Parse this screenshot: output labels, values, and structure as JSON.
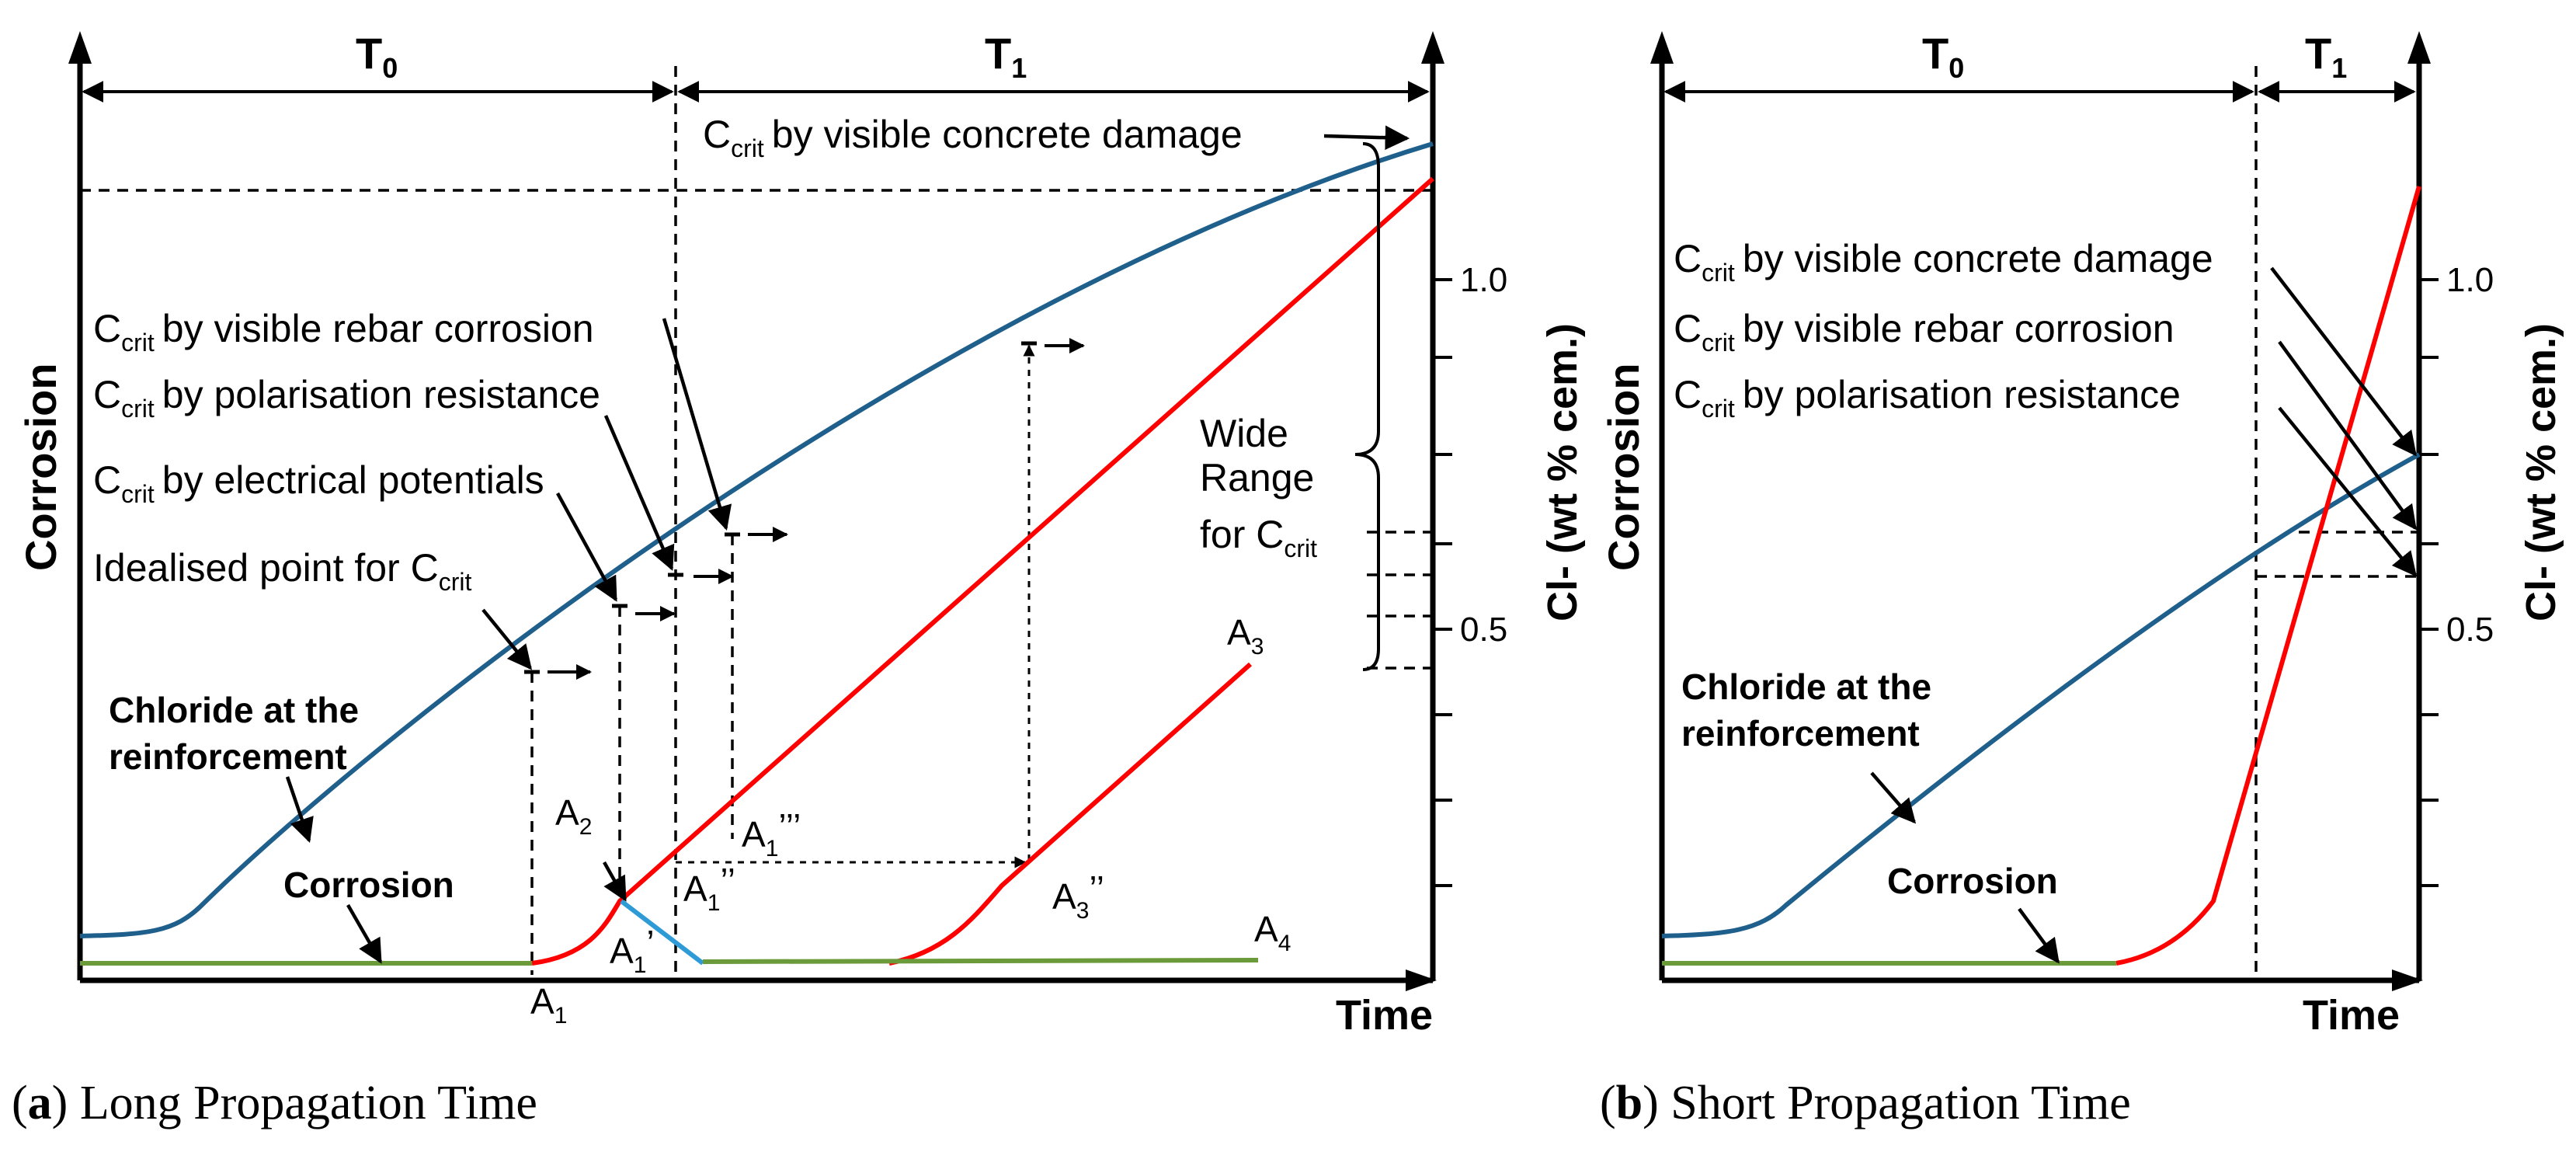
{
  "colors": {
    "chloride": "#1f5f8b",
    "corrosion_red": "#ff0000",
    "corrosion_green": "#6a9a3a",
    "drop_blue": "#2e9bd6",
    "axis": "#000000"
  },
  "panel_a": {
    "caption_letter": "a",
    "caption_text": "Long Propagation Time",
    "y_axis_left": "Corrosion",
    "y_axis_right": "Cl- (wt % cem.)",
    "x_axis": "Time",
    "t0": {
      "main": "T",
      "sub": "0"
    },
    "t1": {
      "main": "T",
      "sub": "1"
    },
    "tick_1": "1.0",
    "tick_05": "0.5",
    "ccrit_word": "C",
    "ccrit_sub": "crit",
    "ann_concrete": "by visible concrete damage",
    "ann_rebar": "by visible rebar corrosion",
    "ann_polar": "by polarisation resistance",
    "ann_potential": "by electrical  potentials",
    "ann_idealised": "Idealised point for C",
    "wide_line1": "Wide",
    "wide_line2": "Range",
    "wide_line3": "for C",
    "chloride_line1": "Chloride at the",
    "chloride_line2": "reinforcement",
    "corrosion_label": "Corrosion",
    "a1": {
      "main": "A",
      "sub": "1"
    },
    "a1p": {
      "main": "A",
      "sub": "1",
      "mark": "’"
    },
    "a1pp": {
      "main": "A",
      "sub": "1",
      "mark": "’’"
    },
    "a1ppp": {
      "main": "A",
      "sub": "1",
      "mark": "’’’"
    },
    "a2": {
      "main": "A",
      "sub": "2"
    },
    "a3": {
      "main": "A",
      "sub": "3"
    },
    "a3pp": {
      "main": "A",
      "sub": "3",
      "mark": "’’"
    },
    "a4": {
      "main": "A",
      "sub": "4"
    }
  },
  "panel_b": {
    "caption_letter": "b",
    "caption_text": "Short Propagation Time",
    "y_axis_left": "Corrosion",
    "y_axis_right": "Cl- (wt % cem.)",
    "x_axis": "Time",
    "t0": {
      "main": "T",
      "sub": "0"
    },
    "t1": {
      "main": "T",
      "sub": "1"
    },
    "tick_1": "1.0",
    "tick_05": "0.5",
    "ccrit_word": "C",
    "ccrit_sub": "crit",
    "ann_concrete": "by visible concrete damage",
    "ann_rebar": "by visible rebar corrosion",
    "ann_polar": "by polarisation resistance",
    "chloride_line1": "Chloride at the",
    "chloride_line2": "reinforcement",
    "corrosion_label": "Corrosion"
  }
}
